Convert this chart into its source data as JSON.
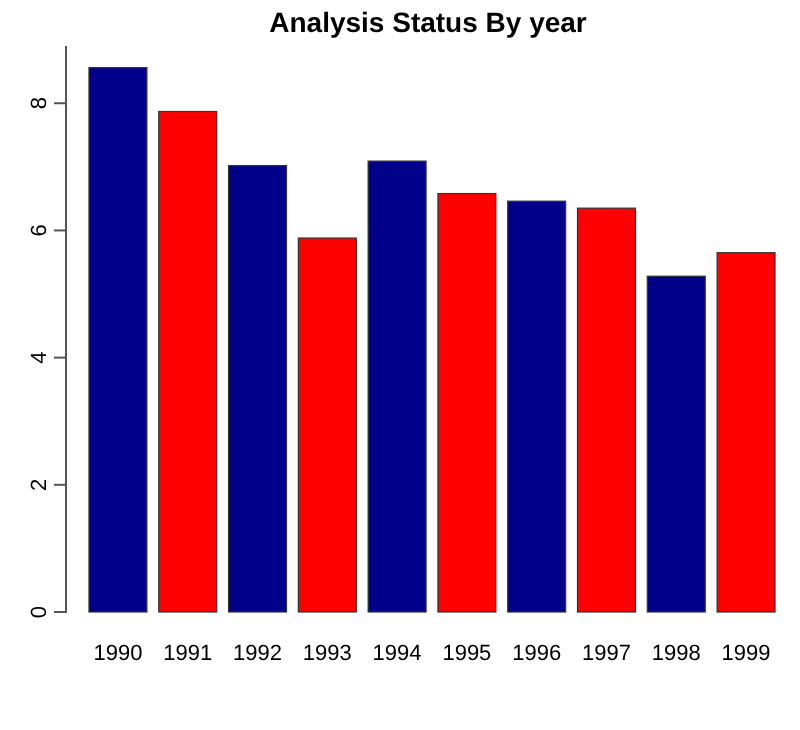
{
  "chart_data": {
    "type": "bar",
    "title": "Analysis Status By year",
    "categories": [
      "1990",
      "1991",
      "1992",
      "1993",
      "1994",
      "1995",
      "1996",
      "1997",
      "1998",
      "1999"
    ],
    "values": [
      8.56,
      7.87,
      7.02,
      5.88,
      7.09,
      6.58,
      6.46,
      6.35,
      5.28,
      5.65
    ],
    "colors": [
      "#00008b",
      "#ff0000",
      "#00008b",
      "#ff0000",
      "#00008b",
      "#ff0000",
      "#00008b",
      "#ff0000",
      "#00008b",
      "#ff0000"
    ],
    "ylim": [
      0,
      8.9
    ],
    "yticks": [
      0,
      2,
      4,
      6,
      8
    ],
    "grid": false
  }
}
